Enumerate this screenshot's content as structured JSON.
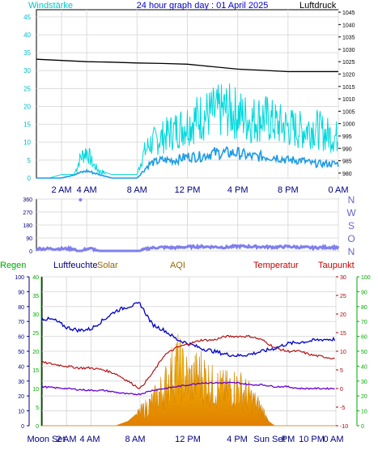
{
  "panel1": {
    "title": "24 hour graph day : 01 April 2025",
    "left_label": "Windstärke",
    "right_label": "Luftdruck",
    "left_ticks": [
      "0",
      "5",
      "10",
      "15",
      "20",
      "25",
      "30",
      "35",
      "40",
      "45"
    ],
    "right_ticks": [
      "980",
      "985",
      "990",
      "995",
      "1000",
      "1005",
      "1010",
      "1015",
      "1020",
      "1025",
      "1030",
      "1035",
      "1040",
      "1045"
    ],
    "x_ticks": [
      "2 AM",
      "4 AM",
      "8 AM",
      "12 PM",
      "4 PM",
      "8 PM",
      "0 AM"
    ]
  },
  "panel2": {
    "left_ticks": [
      "0",
      "90",
      "180",
      "270",
      "360"
    ],
    "compass_letters": [
      "N",
      "W",
      "S",
      "O",
      "N"
    ]
  },
  "panel3": {
    "legend": [
      "Regen",
      "Luftfeuchte",
      "Solar",
      "AQI",
      "Temperatur",
      "Taupunkt"
    ],
    "rain_ticks": [
      "0",
      "5",
      "10",
      "15",
      "20",
      "25",
      "30",
      "35",
      "40"
    ],
    "humidity_ticks": [
      "0",
      "10",
      "20",
      "30",
      "40",
      "50",
      "60",
      "70",
      "80",
      "90",
      "100"
    ],
    "temp_ticks": [
      "-10",
      "-5",
      "0",
      "5",
      "10",
      "15",
      "20",
      "25",
      "30"
    ],
    "far_right_ticks": [
      "0",
      "10",
      "20",
      "30",
      "40",
      "50",
      "60",
      "70",
      "80",
      "90",
      "100"
    ],
    "x_ticks": [
      "Moon Set",
      "2 AM",
      "4 AM",
      "8 AM",
      "12 PM",
      "4 PM",
      "Sun Set",
      "PM",
      "10 PM",
      "0 AM"
    ]
  },
  "colors": {
    "wind_gust": "#00d8dc",
    "wind_avg": "#1e9be6",
    "pressure": "#000000",
    "direction": "#7f7fee",
    "humidity": "#0000c8",
    "temperature": "#b00000",
    "dewpoint": "#6600cc",
    "solar_fill": "#ffb000",
    "rain_axis": "#00aa00",
    "title": "#0000cc",
    "left_label": "#00c8c8",
    "legend_temp": "#cc0000",
    "legend_aqi": "#996600"
  },
  "chart_data": [
    {
      "type": "line",
      "title": "24 hour graph day : 01 April 2025",
      "ylabel": "Windstärke",
      "y2label": "Luftdruck",
      "ylim": [
        0,
        47
      ],
      "y2lim": [
        978,
        1046
      ],
      "x_hours": [
        0,
        24
      ],
      "series": [
        {
          "name": "Windstärke",
          "axis": "left",
          "style": "gust",
          "x": [
            0,
            1,
            2,
            3,
            3.5,
            4,
            4.5,
            5,
            6,
            7,
            8,
            8.5,
            9,
            10,
            11,
            12,
            13,
            14,
            15,
            16,
            17,
            18,
            19,
            20,
            21,
            22,
            23,
            24
          ],
          "y": [
            0,
            0,
            1,
            1,
            6,
            8,
            4,
            2,
            1,
            1,
            1,
            7,
            10,
            12,
            14,
            16,
            18,
            19,
            20,
            19,
            17,
            18,
            16,
            15,
            14,
            15,
            13,
            12
          ]
        },
        {
          "name": "",
          "axis": "left",
          "style": "avg",
          "x": [
            0,
            2,
            4,
            6,
            8,
            8.5,
            9,
            10,
            11,
            12,
            13,
            14,
            15,
            16,
            17,
            18,
            19,
            20,
            21,
            22,
            23,
            24
          ],
          "y": [
            0,
            0,
            2,
            0,
            0,
            2,
            4,
            5,
            5,
            6,
            6,
            7,
            7,
            7,
            6,
            6,
            6,
            5,
            5,
            4,
            4,
            4
          ]
        },
        {
          "name": "Luftdruck",
          "axis": "right",
          "style": "pressure",
          "x": [
            0,
            2,
            4,
            6,
            8,
            10,
            12,
            14,
            16,
            18,
            20,
            22,
            24
          ],
          "y": [
            1026,
            1025.5,
            1025,
            1024.8,
            1024.5,
            1024.3,
            1024,
            1023,
            1022,
            1021.5,
            1021,
            1021,
            1021
          ]
        }
      ]
    },
    {
      "type": "scatter",
      "ylim": [
        0,
        360
      ],
      "x_hours": [
        0,
        24
      ],
      "series": [
        {
          "name": "",
          "x": [
            0,
            1,
            2,
            3,
            3.2,
            3.6,
            4,
            4.4,
            5,
            6,
            7,
            7.6,
            8.2,
            9,
            10,
            11,
            12,
            13,
            14,
            15,
            16,
            17,
            18,
            19,
            20,
            21,
            22,
            23,
            24
          ],
          "y": [
            15,
            15,
            15,
            15,
            0,
            0,
            15,
            15,
            0,
            0,
            0,
            0,
            0,
            20,
            25,
            22,
            28,
            30,
            28,
            25,
            32,
            30,
            28,
            26,
            30,
            25,
            22,
            25,
            25
          ]
        }
      ],
      "outliers": [
        {
          "x": 3.5,
          "y": 355
        }
      ]
    },
    {
      "type": "area",
      "legend": [
        "Regen",
        "Luftfeuchte",
        "Solar",
        "AQI",
        "Temperatur",
        "Taupunkt"
      ],
      "x_hours": [
        0,
        24
      ],
      "axes": {
        "rain": [
          0,
          40
        ],
        "humidity": [
          0,
          100
        ],
        "temperature": [
          -10,
          30
        ]
      },
      "series": [
        {
          "name": "Luftfeuchte",
          "axis": "humidity",
          "x": [
            0,
            1,
            2,
            3,
            4,
            5,
            6,
            7,
            8,
            9,
            10,
            11,
            12,
            13,
            14,
            15,
            16,
            17,
            18,
            19,
            20,
            21,
            22,
            23,
            24
          ],
          "y": [
            72,
            71,
            66,
            64,
            65,
            71,
            77,
            80,
            82,
            68,
            64,
            58,
            55,
            52,
            50,
            48,
            47,
            48,
            50,
            52,
            55,
            56,
            57,
            58,
            58
          ]
        },
        {
          "name": "Temperatur",
          "axis": "temperature",
          "x": [
            0,
            1,
            2,
            3,
            4,
            5,
            6,
            7,
            8,
            9,
            10,
            11,
            12,
            13,
            14,
            15,
            16,
            17,
            18,
            19,
            20,
            21,
            22,
            23,
            24
          ],
          "y": [
            7,
            6.5,
            6,
            5.5,
            5.5,
            5,
            4,
            2,
            0,
            4,
            9,
            11,
            12,
            13,
            13,
            14,
            14,
            14,
            13,
            11,
            10,
            10,
            9,
            8.5,
            8
          ]
        },
        {
          "name": "Taupunkt",
          "axis": "temperature",
          "x": [
            0,
            1,
            2,
            3,
            4,
            5,
            6,
            7,
            8,
            9,
            10,
            11,
            12,
            13,
            14,
            15,
            16,
            17,
            18,
            19,
            20,
            21,
            22,
            23,
            24
          ],
          "y": [
            0.5,
            0.2,
            0,
            -0.3,
            -0.5,
            -0.5,
            -1,
            -1.5,
            -1.5,
            -0.5,
            0,
            0.5,
            1,
            1.5,
            1.5,
            1.5,
            1.5,
            1,
            1,
            0.5,
            0.5,
            0,
            0,
            0,
            0
          ]
        },
        {
          "name": "Solar",
          "axis": "humidity",
          "x": [
            0,
            6,
            7,
            8,
            9,
            10,
            11,
            12,
            13,
            14,
            15,
            16,
            17,
            18,
            18.5,
            19,
            24
          ],
          "y": [
            0,
            0,
            3,
            10,
            18,
            30,
            48,
            35,
            40,
            30,
            28,
            30,
            22,
            12,
            3,
            0,
            0
          ]
        },
        {
          "name": "Regen",
          "axis": "rain",
          "x": [
            0,
            24
          ],
          "y": [
            0,
            0
          ]
        }
      ]
    }
  ]
}
